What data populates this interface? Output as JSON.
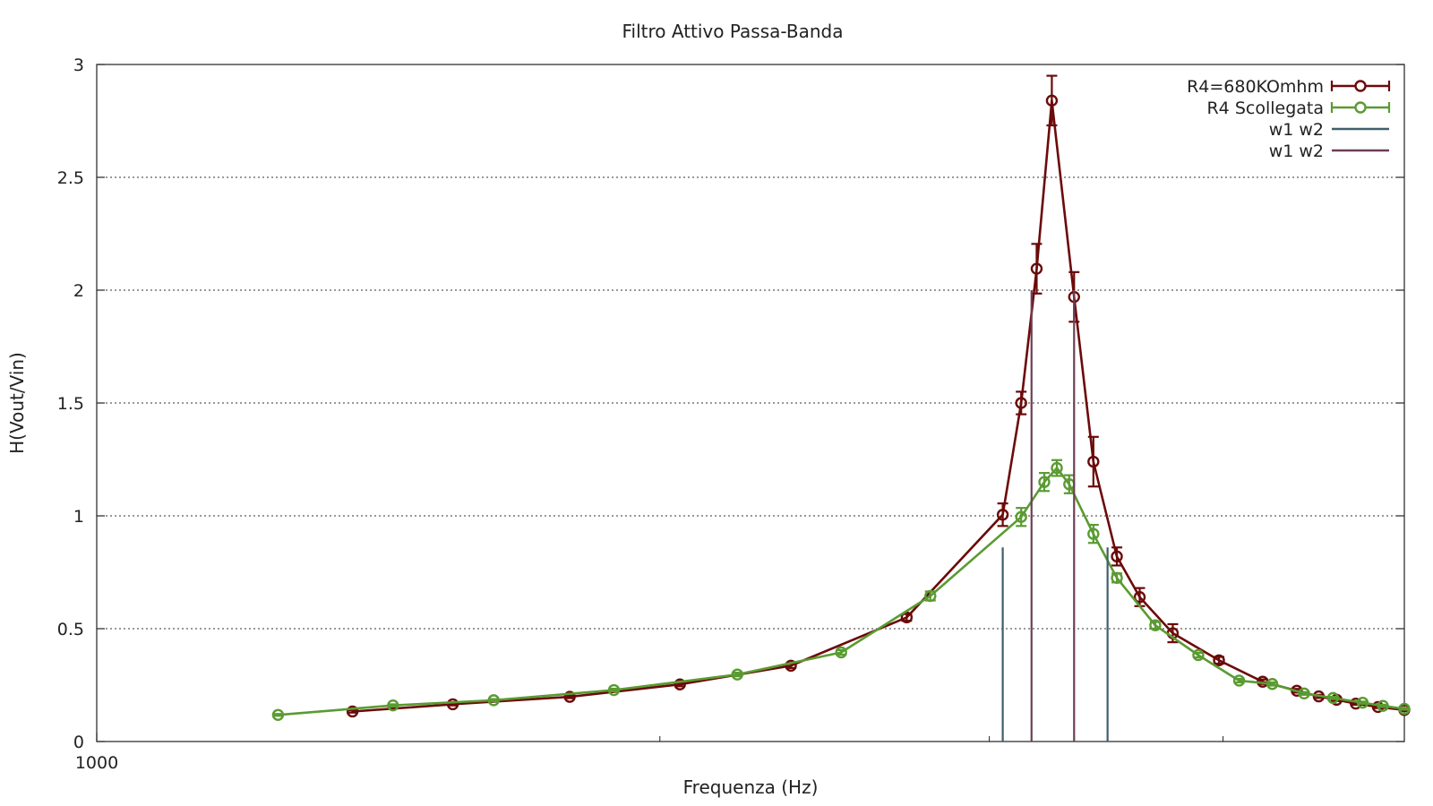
{
  "chart_data": {
    "type": "line",
    "title": "Filtro Attivo Passa-Banda",
    "xlabel": "Frequenza (Hz)",
    "ylabel": "H(Vout/Vin)",
    "xscale": "log",
    "xlim": [
      1000,
      5000
    ],
    "ylim": [
      0,
      3
    ],
    "x_tick_labels": [
      {
        "value": 1000,
        "label": "1000"
      }
    ],
    "y_ticks": [
      0,
      0.5,
      1,
      1.5,
      2,
      2.5,
      3
    ],
    "grid": true,
    "legend_position": "top-right",
    "series": [
      {
        "name": "R4=680KOmhm",
        "color": "#6b0a0a",
        "style": "line-points-errorbars",
        "points": [
          {
            "x": 1370,
            "y": 0.133,
            "err": 0.005
          },
          {
            "x": 1550,
            "y": 0.165,
            "err": 0.005
          },
          {
            "x": 1790,
            "y": 0.198,
            "err": 0.006
          },
          {
            "x": 2050,
            "y": 0.253,
            "err": 0.008
          },
          {
            "x": 2350,
            "y": 0.336,
            "err": 0.01
          },
          {
            "x": 2710,
            "y": 0.55,
            "err": 0.015
          },
          {
            "x": 3050,
            "y": 1.005,
            "err": 0.05
          },
          {
            "x": 3120,
            "y": 1.5,
            "err": 0.05
          },
          {
            "x": 3180,
            "y": 2.095,
            "err": 0.11
          },
          {
            "x": 3240,
            "y": 2.84,
            "err": 0.11
          },
          {
            "x": 3330,
            "y": 1.97,
            "err": 0.11
          },
          {
            "x": 3410,
            "y": 1.24,
            "err": 0.11
          },
          {
            "x": 3510,
            "y": 0.82,
            "err": 0.04
          },
          {
            "x": 3610,
            "y": 0.64,
            "err": 0.04
          },
          {
            "x": 3760,
            "y": 0.48,
            "err": 0.04
          },
          {
            "x": 3980,
            "y": 0.36,
            "err": 0.015
          },
          {
            "x": 4200,
            "y": 0.265,
            "err": 0.01
          },
          {
            "x": 4380,
            "y": 0.225,
            "err": 0.008
          },
          {
            "x": 4500,
            "y": 0.2,
            "err": 0.007
          },
          {
            "x": 4600,
            "y": 0.185,
            "err": 0.006
          },
          {
            "x": 4710,
            "y": 0.168,
            "err": 0.005
          },
          {
            "x": 4840,
            "y": 0.153,
            "err": 0.005
          },
          {
            "x": 5000,
            "y": 0.14,
            "err": 0.005
          }
        ]
      },
      {
        "name": "R4 Scollegata",
        "color": "#5a9b32",
        "style": "line-points-errorbars",
        "points": [
          {
            "x": 1250,
            "y": 0.118,
            "err": 0.004
          },
          {
            "x": 1440,
            "y": 0.16,
            "err": 0.005
          },
          {
            "x": 1630,
            "y": 0.183,
            "err": 0.005
          },
          {
            "x": 1890,
            "y": 0.228,
            "err": 0.006
          },
          {
            "x": 2200,
            "y": 0.297,
            "err": 0.008
          },
          {
            "x": 2500,
            "y": 0.395,
            "err": 0.01
          },
          {
            "x": 2790,
            "y": 0.645,
            "err": 0.02
          },
          {
            "x": 3120,
            "y": 0.995,
            "err": 0.04
          },
          {
            "x": 3210,
            "y": 1.15,
            "err": 0.04
          },
          {
            "x": 3260,
            "y": 1.212,
            "err": 0.035
          },
          {
            "x": 3310,
            "y": 1.14,
            "err": 0.04
          },
          {
            "x": 3410,
            "y": 0.92,
            "err": 0.04
          },
          {
            "x": 3510,
            "y": 0.725,
            "err": 0.02
          },
          {
            "x": 3680,
            "y": 0.515,
            "err": 0.015
          },
          {
            "x": 3880,
            "y": 0.383,
            "err": 0.01
          },
          {
            "x": 4080,
            "y": 0.27,
            "err": 0.008
          },
          {
            "x": 4250,
            "y": 0.255,
            "err": 0.007
          },
          {
            "x": 4420,
            "y": 0.213,
            "err": 0.006
          },
          {
            "x": 4580,
            "y": 0.193,
            "err": 0.005
          },
          {
            "x": 4750,
            "y": 0.172,
            "err": 0.005
          },
          {
            "x": 4870,
            "y": 0.158,
            "err": 0.005
          },
          {
            "x": 5000,
            "y": 0.145,
            "err": 0.004
          }
        ]
      },
      {
        "name": "w1 w2",
        "color": "#3f5f6b",
        "style": "impulses",
        "points": [
          {
            "x": 3050,
            "y": 0.86
          },
          {
            "x": 3470,
            "y": 0.86
          }
        ]
      },
      {
        "name": "w1 w2",
        "color": "#6b3f55",
        "style": "impulses",
        "points": [
          {
            "x": 3160,
            "y": 2.0
          },
          {
            "x": 3330,
            "y": 2.0
          }
        ]
      }
    ]
  }
}
